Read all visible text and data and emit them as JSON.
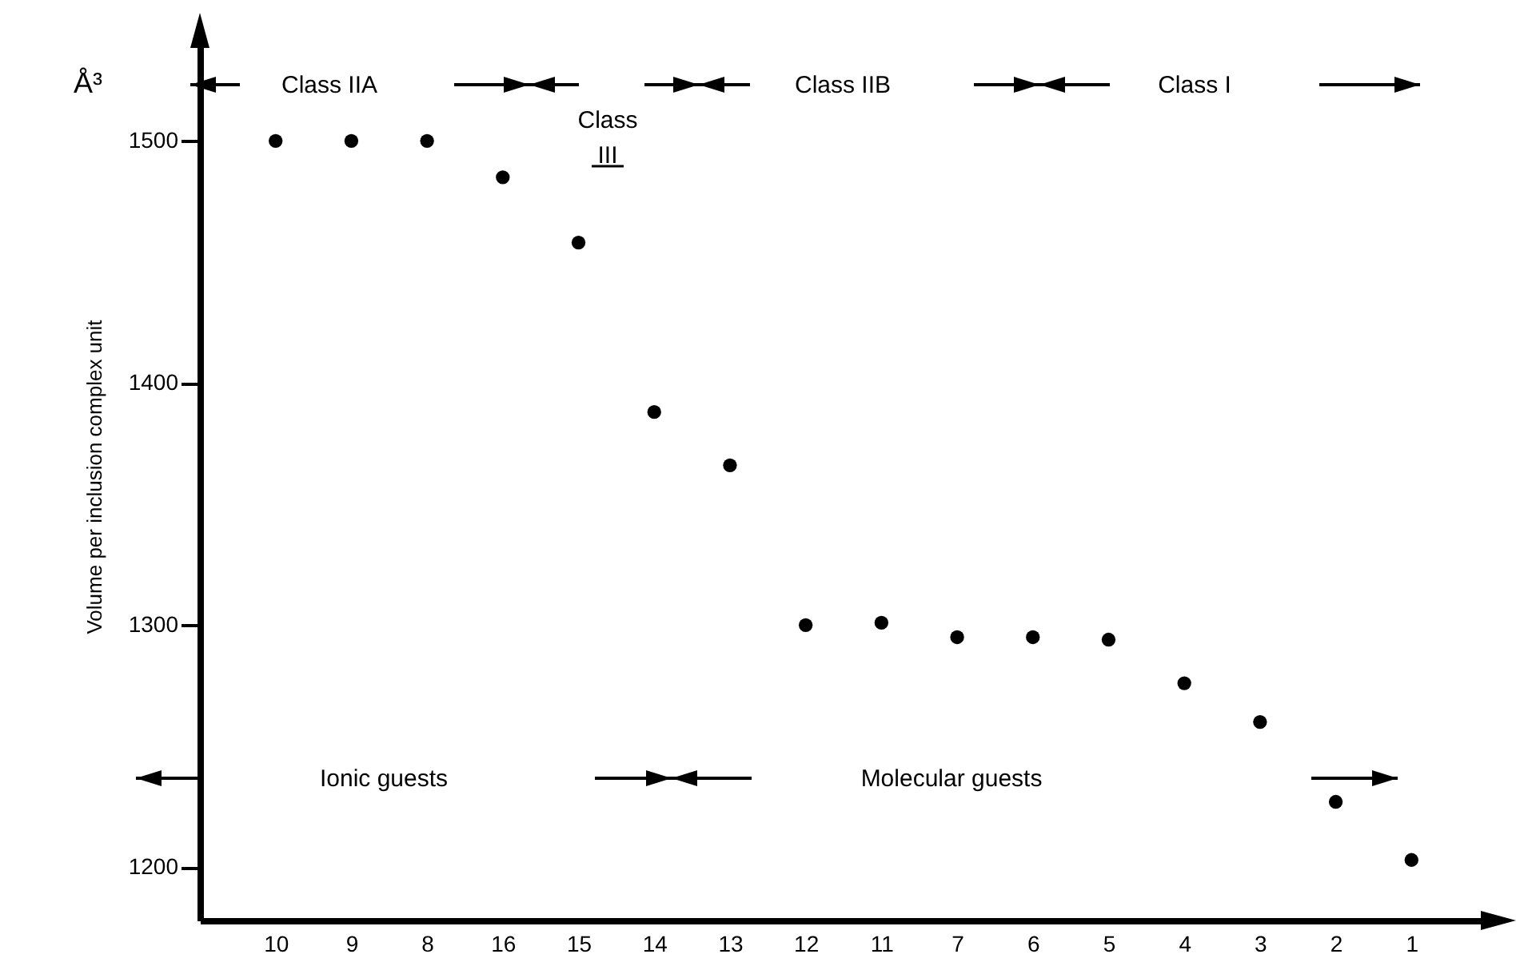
{
  "chart_data": {
    "type": "scatter",
    "ylabel": "Volume per inclusion complex unit",
    "categories": [
      "10",
      "9",
      "8",
      "16",
      "15",
      "14",
      "13",
      "12",
      "11",
      "7",
      "6",
      "5",
      "4",
      "3",
      "2",
      "1"
    ],
    "values": [
      1500,
      1500,
      1500,
      1485,
      1458,
      1388,
      1366,
      1300,
      1301,
      1295,
      1295,
      1294,
      1276,
      1260,
      1227,
      1203
    ],
    "color": "#000000",
    "marker": "circle",
    "ylim": [
      1178,
      1545
    ],
    "yticks": [
      1200,
      1300,
      1400,
      1500
    ],
    "annotations": [
      "Å³",
      "Class IIA",
      "Class III",
      "Class IIB",
      "Class I",
      "Ionic guests",
      "Molecular guests"
    ]
  }
}
